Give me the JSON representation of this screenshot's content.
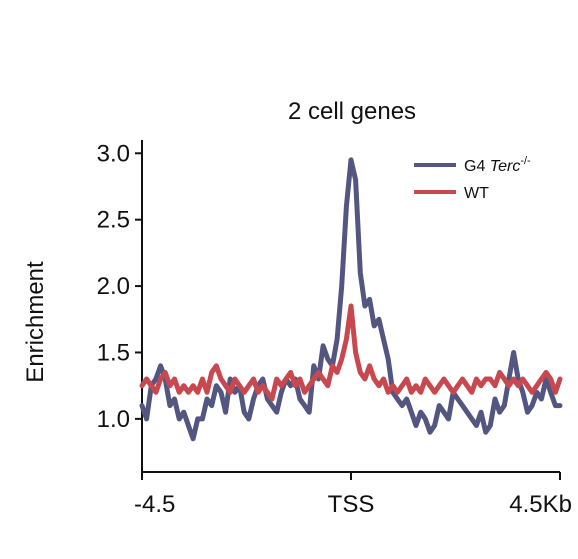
{
  "chart_data": {
    "type": "line",
    "title": "2 cell genes",
    "ylabel": "Enrichment",
    "xlabel": "",
    "x_ticks": [
      "-4.5",
      "TSS",
      "4.5Kb"
    ],
    "x_tick_values": [
      -4.5,
      0,
      4.5
    ],
    "xlim": [
      -4.5,
      4.5
    ],
    "ylim": [
      0.6,
      3.1
    ],
    "y_ticks": [
      "1.0",
      "1.5",
      "2.0",
      "2.5",
      "3.0"
    ],
    "y_tick_values": [
      1.0,
      1.5,
      2.0,
      2.5,
      3.0
    ],
    "grid": false,
    "legend_position": "top-right",
    "series": [
      {
        "name": "G4 Terc-/-",
        "legend_main": "G4 ",
        "legend_italic": "Terc",
        "legend_sup": "-/-",
        "color": "#535680",
        "x": [
          -4.5,
          -4.4,
          -4.3,
          -4.2,
          -4.1,
          -4.0,
          -3.9,
          -3.8,
          -3.7,
          -3.6,
          -3.5,
          -3.4,
          -3.3,
          -3.2,
          -3.1,
          -3.0,
          -2.9,
          -2.8,
          -2.7,
          -2.6,
          -2.5,
          -2.4,
          -2.3,
          -2.2,
          -2.1,
          -2.0,
          -1.9,
          -1.8,
          -1.7,
          -1.6,
          -1.5,
          -1.4,
          -1.3,
          -1.2,
          -1.1,
          -1.0,
          -0.9,
          -0.8,
          -0.7,
          -0.6,
          -0.5,
          -0.4,
          -0.3,
          -0.2,
          -0.1,
          0.0,
          0.1,
          0.2,
          0.3,
          0.4,
          0.5,
          0.6,
          0.7,
          0.8,
          0.9,
          1.0,
          1.1,
          1.2,
          1.3,
          1.4,
          1.5,
          1.6,
          1.7,
          1.8,
          1.9,
          2.0,
          2.1,
          2.2,
          2.3,
          2.4,
          2.5,
          2.6,
          2.7,
          2.8,
          2.9,
          3.0,
          3.1,
          3.2,
          3.3,
          3.4,
          3.5,
          3.6,
          3.7,
          3.8,
          3.9,
          4.0,
          4.1,
          4.2,
          4.3,
          4.4,
          4.5
        ],
        "y": [
          1.1,
          1.0,
          1.25,
          1.3,
          1.4,
          1.3,
          1.1,
          1.15,
          1.0,
          1.05,
          0.95,
          0.85,
          1.0,
          1.0,
          1.15,
          1.1,
          1.25,
          1.2,
          1.05,
          1.3,
          1.2,
          1.25,
          1.05,
          1.0,
          1.15,
          1.25,
          1.3,
          1.15,
          1.1,
          1.05,
          1.2,
          1.3,
          1.25,
          1.3,
          1.15,
          1.1,
          1.05,
          1.4,
          1.3,
          1.55,
          1.45,
          1.4,
          1.6,
          2.0,
          2.6,
          2.95,
          2.8,
          2.1,
          1.85,
          1.9,
          1.7,
          1.75,
          1.6,
          1.45,
          1.2,
          1.15,
          1.1,
          1.15,
          1.05,
          0.95,
          1.05,
          1.0,
          0.9,
          0.95,
          1.1,
          1.05,
          1.0,
          1.2,
          1.15,
          1.1,
          1.05,
          1.0,
          0.95,
          1.05,
          0.9,
          0.95,
          1.15,
          1.05,
          1.1,
          1.3,
          1.5,
          1.3,
          1.2,
          1.05,
          1.1,
          1.2,
          1.15,
          1.3,
          1.2,
          1.1,
          1.1
        ]
      },
      {
        "name": "WT",
        "legend_main": "WT",
        "legend_italic": "",
        "legend_sup": "",
        "color": "#c8484f",
        "x": [
          -4.5,
          -4.4,
          -4.3,
          -4.2,
          -4.1,
          -4.0,
          -3.9,
          -3.8,
          -3.7,
          -3.6,
          -3.5,
          -3.4,
          -3.3,
          -3.2,
          -3.1,
          -3.0,
          -2.9,
          -2.8,
          -2.7,
          -2.6,
          -2.5,
          -2.4,
          -2.3,
          -2.2,
          -2.1,
          -2.0,
          -1.9,
          -1.8,
          -1.7,
          -1.6,
          -1.5,
          -1.4,
          -1.3,
          -1.2,
          -1.1,
          -1.0,
          -0.9,
          -0.8,
          -0.7,
          -0.6,
          -0.5,
          -0.4,
          -0.3,
          -0.2,
          -0.1,
          0.0,
          0.1,
          0.2,
          0.3,
          0.4,
          0.5,
          0.6,
          0.7,
          0.8,
          0.9,
          1.0,
          1.1,
          1.2,
          1.3,
          1.4,
          1.5,
          1.6,
          1.7,
          1.8,
          1.9,
          2.0,
          2.1,
          2.2,
          2.3,
          2.4,
          2.5,
          2.6,
          2.7,
          2.8,
          2.9,
          3.0,
          3.1,
          3.2,
          3.3,
          3.4,
          3.5,
          3.6,
          3.7,
          3.8,
          3.9,
          4.0,
          4.1,
          4.2,
          4.3,
          4.4,
          4.5
        ],
        "y": [
          1.25,
          1.3,
          1.25,
          1.2,
          1.3,
          1.35,
          1.25,
          1.3,
          1.2,
          1.25,
          1.2,
          1.25,
          1.2,
          1.3,
          1.2,
          1.35,
          1.4,
          1.3,
          1.25,
          1.2,
          1.3,
          1.25,
          1.2,
          1.25,
          1.3,
          1.2,
          1.25,
          1.2,
          1.15,
          1.3,
          1.25,
          1.3,
          1.35,
          1.25,
          1.3,
          1.2,
          1.25,
          1.3,
          1.35,
          1.3,
          1.25,
          1.4,
          1.35,
          1.45,
          1.6,
          1.85,
          1.5,
          1.35,
          1.3,
          1.4,
          1.3,
          1.25,
          1.3,
          1.2,
          1.25,
          1.2,
          1.25,
          1.3,
          1.2,
          1.25,
          1.2,
          1.3,
          1.25,
          1.2,
          1.25,
          1.3,
          1.25,
          1.2,
          1.25,
          1.3,
          1.25,
          1.2,
          1.3,
          1.25,
          1.3,
          1.3,
          1.25,
          1.35,
          1.3,
          1.25,
          1.3,
          1.25,
          1.3,
          1.25,
          1.2,
          1.25,
          1.3,
          1.35,
          1.3,
          1.2,
          1.3
        ]
      }
    ]
  }
}
